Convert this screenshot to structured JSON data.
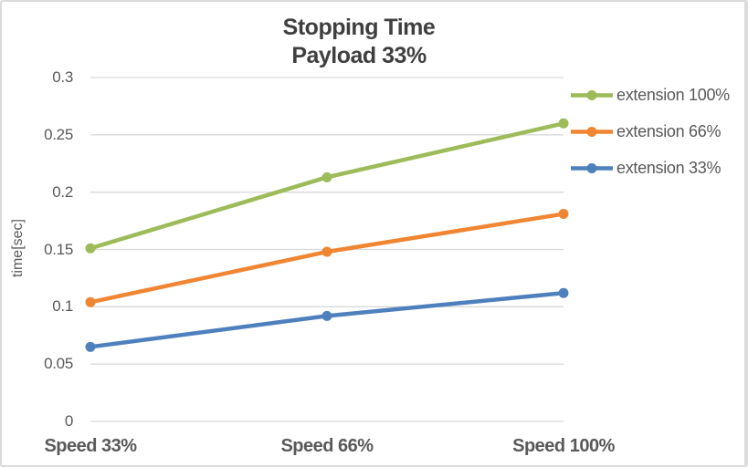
{
  "chart": {
    "title_line1": "Stopping Time",
    "title_line2": "Payload 33%",
    "y_axis_title": "time[sec]"
  },
  "chart_data": {
    "type": "line",
    "title": "Stopping Time",
    "subtitle": "Payload 33%",
    "categories": [
      "Speed 33%",
      "Speed 66%",
      "Speed 100%"
    ],
    "series": [
      {
        "name": "extension 100%",
        "color": "#9cbb59",
        "values": [
          0.151,
          0.213,
          0.26
        ]
      },
      {
        "name": "extension 66%",
        "color": "#f08532",
        "values": [
          0.104,
          0.148,
          0.181
        ]
      },
      {
        "name": "extension 33%",
        "color": "#4e80bd",
        "values": [
          0.065,
          0.092,
          0.112
        ]
      }
    ],
    "xlabel": "",
    "ylabel": "time[sec]",
    "ylim": [
      0,
      0.3
    ],
    "ytick_step": 0.05,
    "yticks": [
      "0",
      "0.05",
      "0.1",
      "0.15",
      "0.2",
      "0.25",
      "0.3"
    ],
    "grid": true,
    "legend_position": "right",
    "marker": "circle"
  },
  "colors": {
    "background": "#ffffff",
    "frame_border": "#dbdbdb",
    "gridline": "#d9d9d9",
    "title_text": "#3f3f3f",
    "axis_text": "#595959"
  }
}
